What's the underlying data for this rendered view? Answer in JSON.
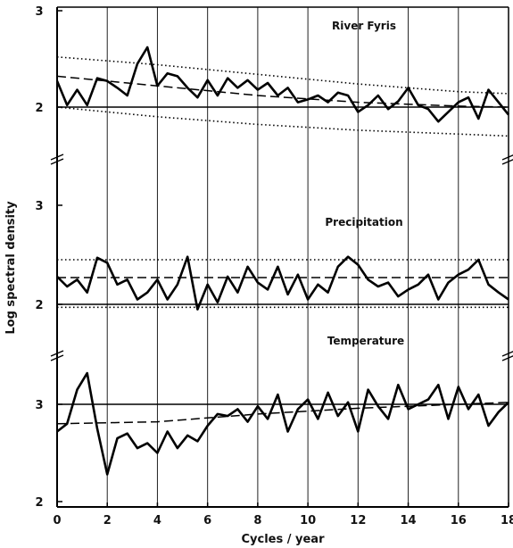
{
  "chart_data": {
    "type": "line",
    "xlabel": "Cycles / year",
    "ylabel": "Log spectral density",
    "x_ticks": [
      "0",
      "2",
      "4",
      "6",
      "8",
      "10",
      "12",
      "14",
      "16",
      "18"
    ],
    "xlim": [
      0,
      18
    ],
    "grid": "vertical lines at every even cycle/year",
    "panels": [
      {
        "title": "River Fyris",
        "y_ticks": [
          "3",
          "2"
        ],
        "ylim": [
          1.55,
          3.0
        ],
        "series": [
          {
            "role": "spectrum",
            "style": "solid-thick",
            "x": [
              0,
              0.4,
              0.8,
              1.2,
              1.6,
              2,
              2.4,
              2.8,
              3.2,
              3.6,
              4,
              4.4,
              4.8,
              5.2,
              5.6,
              6,
              6.4,
              6.8,
              7.2,
              7.6,
              8,
              8.4,
              8.8,
              9.2,
              9.6,
              10,
              10.4,
              10.8,
              11.2,
              11.6,
              12,
              12.4,
              12.8,
              13.2,
              13.6,
              14,
              14.4,
              14.8,
              15.2,
              15.6,
              16,
              16.4,
              16.8,
              17.2,
              17.6,
              18
            ],
            "y": [
              2.27,
              2.02,
              2.18,
              2.02,
              2.3,
              2.27,
              2.2,
              2.12,
              2.45,
              2.62,
              2.22,
              2.35,
              2.32,
              2.2,
              2.1,
              2.28,
              2.12,
              2.3,
              2.2,
              2.28,
              2.18,
              2.25,
              2.12,
              2.2,
              2.05,
              2.08,
              2.12,
              2.05,
              2.15,
              2.12,
              1.95,
              2.02,
              2.12,
              1.98,
              2.06,
              2.2,
              2.02,
              1.98,
              1.85,
              1.95,
              2.05,
              2.1,
              1.88,
              2.18,
              2.05,
              1.92
            ]
          },
          {
            "role": "fitted",
            "style": "dashed",
            "x": [
              0,
              4,
              8,
              12,
              16,
              18
            ],
            "y": [
              2.32,
              2.22,
              2.12,
              2.05,
              2.01,
              2.0
            ]
          },
          {
            "role": "upper-confidence",
            "style": "dotted",
            "x": [
              0,
              4,
              8,
              12,
              16,
              18
            ],
            "y": [
              2.52,
              2.44,
              2.34,
              2.24,
              2.16,
              2.14
            ]
          },
          {
            "role": "lower-confidence",
            "style": "dotted",
            "x": [
              0,
              4,
              8,
              12,
              16,
              18
            ],
            "y": [
              2.0,
              1.9,
              1.82,
              1.76,
              1.72,
              1.7
            ]
          },
          {
            "role": "reference",
            "style": "solid-thin",
            "x": [
              0,
              18
            ],
            "y": [
              2.0,
              2.0
            ]
          }
        ]
      },
      {
        "title": "Precipitation",
        "y_ticks": [
          "3",
          "2"
        ],
        "ylim": [
          1.5,
          3.0
        ],
        "series": [
          {
            "role": "spectrum",
            "style": "solid-thick",
            "x": [
              0,
              0.4,
              0.8,
              1.2,
              1.6,
              2,
              2.4,
              2.8,
              3.2,
              3.6,
              4,
              4.4,
              4.8,
              5.2,
              5.6,
              6,
              6.4,
              6.8,
              7.2,
              7.6,
              8,
              8.4,
              8.8,
              9.2,
              9.6,
              10,
              10.4,
              10.8,
              11.2,
              11.6,
              12,
              12.4,
              12.8,
              13.2,
              13.6,
              14,
              14.4,
              14.8,
              15.2,
              15.6,
              16,
              16.4,
              16.8,
              17.2,
              17.6,
              18
            ],
            "y": [
              2.28,
              2.18,
              2.25,
              2.12,
              2.47,
              2.42,
              2.2,
              2.25,
              2.05,
              2.12,
              2.25,
              2.05,
              2.2,
              2.48,
              1.95,
              2.2,
              2.02,
              2.28,
              2.12,
              2.38,
              2.22,
              2.15,
              2.38,
              2.1,
              2.3,
              2.05,
              2.2,
              2.12,
              2.38,
              2.48,
              2.4,
              2.25,
              2.18,
              2.22,
              2.08,
              2.15,
              2.2,
              2.3,
              2.05,
              2.22,
              2.3,
              2.35,
              2.45,
              2.2,
              2.12,
              2.05
            ]
          },
          {
            "role": "fitted",
            "style": "dashed",
            "x": [
              0,
              18
            ],
            "y": [
              2.27,
              2.27
            ]
          },
          {
            "role": "upper-confidence",
            "style": "dotted",
            "x": [
              0,
              18
            ],
            "y": [
              2.45,
              2.45
            ]
          },
          {
            "role": "lower-confidence",
            "style": "dotted",
            "x": [
              0,
              18
            ],
            "y": [
              1.97,
              1.97
            ]
          },
          {
            "role": "reference",
            "style": "solid-thin",
            "x": [
              0,
              18
            ],
            "y": [
              2.0,
              2.0
            ]
          }
        ]
      },
      {
        "title": "Temperature",
        "y_ticks": [
          "3",
          "2"
        ],
        "ylim": [
          2.0,
          3.5
        ],
        "series": [
          {
            "role": "spectrum",
            "style": "solid-thick",
            "x": [
              0,
              0.4,
              0.8,
              1.2,
              1.6,
              2,
              2.4,
              2.8,
              3.2,
              3.6,
              4,
              4.4,
              4.8,
              5.2,
              5.6,
              6,
              6.4,
              6.8,
              7.2,
              7.6,
              8,
              8.4,
              8.8,
              9.2,
              9.6,
              10,
              10.4,
              10.8,
              11.2,
              11.6,
              12,
              12.4,
              12.8,
              13.2,
              13.6,
              14,
              14.4,
              14.8,
              15.2,
              15.6,
              16,
              16.4,
              16.8,
              17.2,
              17.6,
              18
            ],
            "y": [
              2.72,
              2.8,
              3.15,
              3.32,
              2.75,
              2.28,
              2.65,
              2.7,
              2.55,
              2.6,
              2.5,
              2.72,
              2.55,
              2.68,
              2.62,
              2.78,
              2.9,
              2.88,
              2.95,
              2.82,
              2.98,
              2.85,
              3.1,
              2.72,
              2.95,
              3.05,
              2.85,
              3.12,
              2.88,
              3.02,
              2.72,
              3.15,
              2.98,
              2.85,
              3.2,
              2.95,
              3.0,
              3.05,
              3.2,
              2.85,
              3.18,
              2.95,
              3.1,
              2.78,
              2.92,
              3.02
            ]
          },
          {
            "role": "fitted",
            "style": "dashed",
            "x": [
              0,
              4,
              8,
              12,
              16,
              18
            ],
            "y": [
              2.8,
              2.82,
              2.9,
              2.96,
              3.0,
              3.02
            ]
          },
          {
            "role": "reference",
            "style": "solid-thin",
            "x": [
              0,
              18
            ],
            "y": [
              3.0,
              3.0
            ]
          }
        ]
      }
    ]
  }
}
